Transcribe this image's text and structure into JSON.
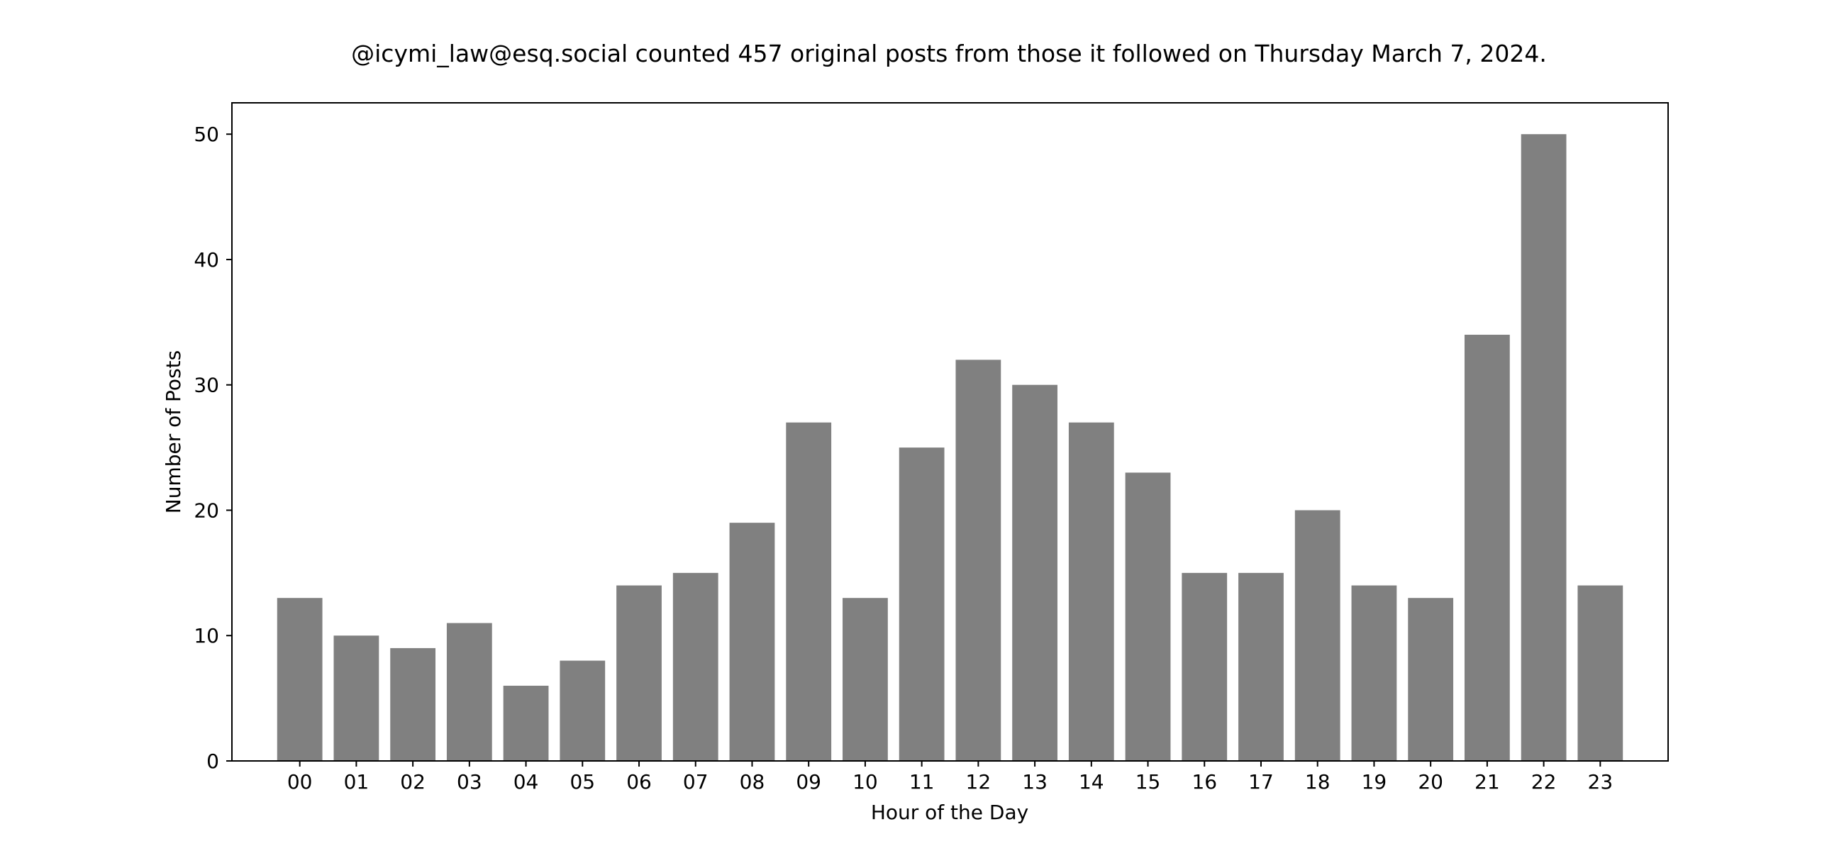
{
  "chart_data": {
    "type": "bar",
    "title": "@icymi_law@esq.social counted 457 original posts from those it followed on Thursday March 7, 2024.",
    "xlabel": "Hour of the Day",
    "ylabel": "Number of Posts",
    "categories": [
      "00",
      "01",
      "02",
      "03",
      "04",
      "05",
      "06",
      "07",
      "08",
      "09",
      "10",
      "11",
      "12",
      "13",
      "14",
      "15",
      "16",
      "17",
      "18",
      "19",
      "20",
      "21",
      "22",
      "23"
    ],
    "values": [
      13,
      10,
      9,
      11,
      6,
      8,
      14,
      15,
      19,
      27,
      13,
      25,
      32,
      30,
      27,
      23,
      15,
      15,
      20,
      14,
      13,
      34,
      50,
      14
    ],
    "ylim": [
      0,
      52.5
    ],
    "yticks": [
      0,
      10,
      20,
      30,
      40,
      50
    ],
    "bar_color": "#808080",
    "grid": false,
    "legend": "none"
  }
}
